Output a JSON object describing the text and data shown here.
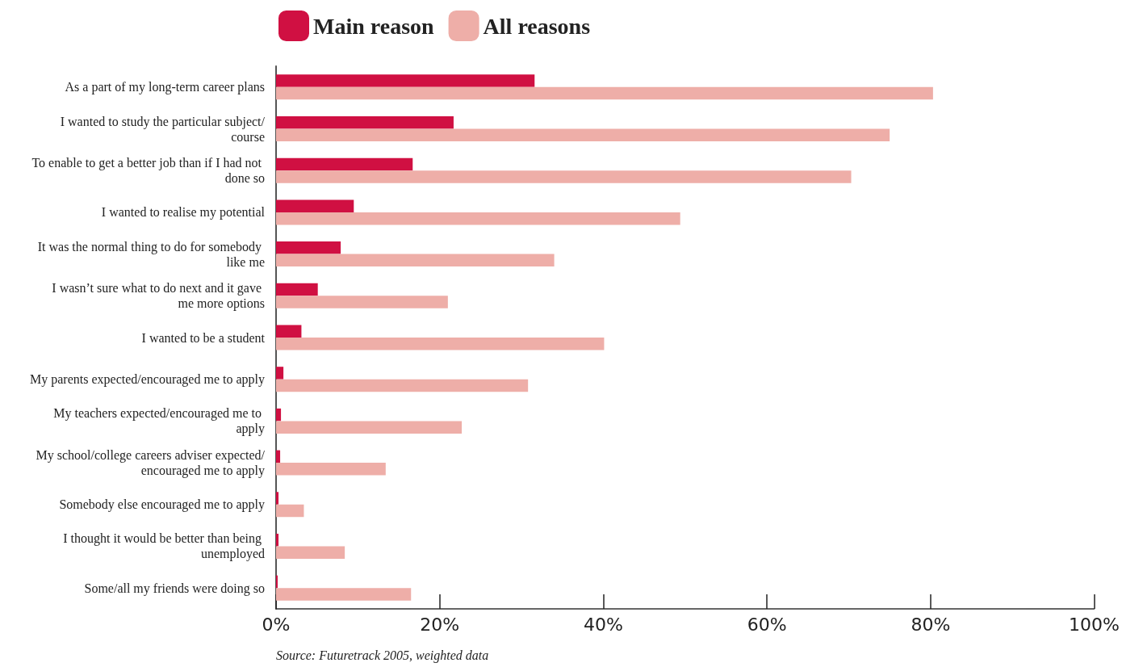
{
  "chart_data": {
    "type": "bar",
    "orientation": "horizontal",
    "categories": [
      "As a part of my long-term career plans",
      "I wanted to study the particular subject/course",
      "To enable to get a better job than if I had not done so",
      "I wanted to realise my potential",
      "It was the normal thing to do for somebody like me",
      "I wasn’t sure what to do next and it gave me more options",
      "I wanted to be a student",
      "My parents expected/encouraged me to apply",
      "My teachers expected/encouraged me to apply",
      "My school/college careers adviser expected/encouraged me to apply",
      "Somebody else encouraged me to apply",
      "I thought it would be better than being unemployed",
      "Some/all my friends were doing so"
    ],
    "series": [
      {
        "name": "Main reason",
        "color": "#d01042",
        "values": [
          31.6,
          21.7,
          16.7,
          9.5,
          7.9,
          5.1,
          3.1,
          0.9,
          0.6,
          0.5,
          0.3,
          0.3,
          0.2
        ]
      },
      {
        "name": "All reasons",
        "color": "#eeaea8",
        "values": [
          80.3,
          75.0,
          70.3,
          49.4,
          34.0,
          21.0,
          40.1,
          30.8,
          22.7,
          13.4,
          3.4,
          8.4,
          16.5
        ]
      }
    ],
    "xlim": [
      0,
      100
    ],
    "xticks": [
      {
        "value": 0,
        "label": "0%"
      },
      {
        "value": 20,
        "label": "20%"
      },
      {
        "value": 40,
        "label": "40%"
      },
      {
        "value": 60,
        "label": "60%"
      },
      {
        "value": 80,
        "label": "80%"
      },
      {
        "value": 100,
        "label": "100%"
      }
    ],
    "grid": false,
    "legend": "top",
    "annotations": [
      "Source: Futuretrack 2005, weighted data"
    ]
  }
}
